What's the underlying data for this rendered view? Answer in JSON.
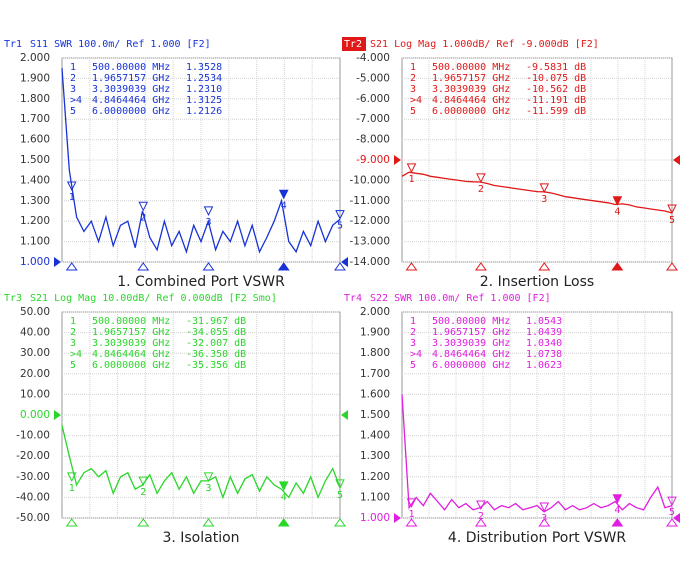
{
  "chart_data": [
    {
      "type": "line",
      "trace": "Tr1",
      "title": "S11 SWR 100.0m/ Ref 1.000 [F2]",
      "caption": "1. Combined Port VSWR",
      "color": "#1733d6",
      "active": false,
      "x": [
        0.3,
        0.45,
        0.6,
        0.75,
        0.9,
        1.05,
        1.2,
        1.35,
        1.5,
        1.65,
        1.8,
        1.95,
        2.1,
        2.25,
        2.4,
        2.55,
        2.7,
        2.85,
        3.0,
        3.15,
        3.3,
        3.45,
        3.6,
        3.75,
        3.9,
        4.05,
        4.2,
        4.35,
        4.5,
        4.65,
        4.8,
        4.95,
        5.1,
        5.25,
        5.4,
        5.55,
        5.7,
        5.85,
        6.0
      ],
      "values": [
        1.95,
        1.45,
        1.22,
        1.15,
        1.2,
        1.1,
        1.22,
        1.08,
        1.18,
        1.2,
        1.07,
        1.25,
        1.12,
        1.06,
        1.2,
        1.08,
        1.15,
        1.05,
        1.18,
        1.1,
        1.2,
        1.06,
        1.15,
        1.1,
        1.2,
        1.08,
        1.18,
        1.05,
        1.12,
        1.2,
        1.3,
        1.1,
        1.05,
        1.15,
        1.08,
        1.2,
        1.1,
        1.18,
        1.21
      ],
      "xlim": [
        0.3,
        6.0
      ],
      "ylim": [
        1,
        2
      ],
      "yticks": [
        {
          "value": 2,
          "label": "2.000"
        },
        {
          "value": 1.9,
          "label": "1.900"
        },
        {
          "value": 1.8,
          "label": "1.800"
        },
        {
          "value": 1.7,
          "label": "1.700"
        },
        {
          "value": 1.6,
          "label": "1.600"
        },
        {
          "value": 1.5,
          "label": "1.500"
        },
        {
          "value": 1.4,
          "label": "1.400"
        },
        {
          "value": 1.3,
          "label": "1.300"
        },
        {
          "value": 1.2,
          "label": "1.200"
        },
        {
          "value": 1.1,
          "label": "1.100"
        },
        {
          "value": 1,
          "label": "1.000"
        }
      ],
      "ref": 1,
      "markers": {
        "names": [
          "1",
          "2",
          "3",
          ">4",
          "5"
        ],
        "trace_labels": [
          "1",
          "2",
          "3",
          "4",
          "5"
        ],
        "stimulus": [
          "500.00000 MHz",
          "1.9657157 GHz",
          "3.3039039 GHz",
          "4.8464464 GHz",
          "6.0000000 GHz"
        ],
        "x": [
          0.5,
          1.9657157,
          3.3039039,
          4.8464464,
          6.0
        ],
        "values": [
          1.3528,
          1.2534,
          1.231,
          1.3125,
          1.2126
        ],
        "value_labels": [
          "1.3528",
          "1.2534",
          "1.2310",
          "1.3125",
          "1.2126"
        ]
      },
      "active_marker": 3
    },
    {
      "type": "line",
      "trace": "Tr2",
      "title": "S21 Log Mag 1.000dB/ Ref -9.000dB [F2]",
      "caption": "2. Insertion Loss",
      "color": "#e01818",
      "active": true,
      "x": [
        0.3,
        0.45,
        0.6,
        0.75,
        0.9,
        1.05,
        1.2,
        1.35,
        1.5,
        1.65,
        1.8,
        1.95,
        2.1,
        2.25,
        2.4,
        2.55,
        2.7,
        2.85,
        3.0,
        3.15,
        3.3,
        3.45,
        3.6,
        3.75,
        3.9,
        4.05,
        4.2,
        4.35,
        4.5,
        4.65,
        4.8,
        4.95,
        5.1,
        5.25,
        5.4,
        5.55,
        5.7,
        5.85,
        6.0
      ],
      "values": [
        -9.8,
        -9.6,
        -9.65,
        -9.7,
        -9.8,
        -9.85,
        -9.9,
        -9.95,
        -10.0,
        -10.05,
        -10.07,
        -10.08,
        -10.15,
        -10.25,
        -10.3,
        -10.35,
        -10.4,
        -10.45,
        -10.5,
        -10.55,
        -10.56,
        -10.62,
        -10.7,
        -10.8,
        -10.85,
        -10.9,
        -10.95,
        -11.0,
        -11.05,
        -11.1,
        -11.18,
        -11.15,
        -11.2,
        -11.3,
        -11.35,
        -11.4,
        -11.45,
        -11.5,
        -11.6
      ],
      "xlim": [
        0.3,
        6.0
      ],
      "ylim": [
        -14,
        -4
      ],
      "yticks": [
        {
          "value": -4,
          "label": "-4.000"
        },
        {
          "value": -5,
          "label": "-5.000"
        },
        {
          "value": -6,
          "label": "-6.000"
        },
        {
          "value": -7,
          "label": "-7.000"
        },
        {
          "value": -8,
          "label": "-8.000"
        },
        {
          "value": -9,
          "label": "-9.000"
        },
        {
          "value": -10,
          "label": "-10.000"
        },
        {
          "value": -11,
          "label": "-11.000"
        },
        {
          "value": -12,
          "label": "-12.000"
        },
        {
          "value": -13,
          "label": "-13.000"
        },
        {
          "value": -14,
          "label": "-14.000"
        }
      ],
      "ref": -9,
      "markers": {
        "names": [
          "1",
          "2",
          "3",
          ">4",
          "5"
        ],
        "trace_labels": [
          "1",
          "2",
          "3",
          "4",
          "5"
        ],
        "stimulus": [
          "500.00000 MHz",
          "1.9657157 GHz",
          "3.3039039 GHz",
          "4.8464464 GHz",
          "6.0000000 GHz"
        ],
        "x": [
          0.5,
          1.9657157,
          3.3039039,
          4.8464464,
          6.0
        ],
        "values": [
          -9.5831,
          -10.075,
          -10.562,
          -11.191,
          -11.599
        ],
        "value_labels": [
          "-9.5831 dB",
          "-10.075 dB",
          "-10.562 dB",
          "-11.191 dB",
          "-11.599 dB"
        ]
      },
      "active_marker": 3
    },
    {
      "type": "line",
      "trace": "Tr3",
      "title": "S21 Log Mag 10.00dB/ Ref 0.000dB [F2 Smo]",
      "caption": "3. Isolation",
      "color": "#2bd62b",
      "active": false,
      "x": [
        0.3,
        0.45,
        0.6,
        0.75,
        0.9,
        1.05,
        1.2,
        1.35,
        1.5,
        1.65,
        1.8,
        1.95,
        2.1,
        2.25,
        2.4,
        2.55,
        2.7,
        2.85,
        3.0,
        3.15,
        3.3,
        3.45,
        3.6,
        3.75,
        3.9,
        4.05,
        4.2,
        4.35,
        4.5,
        4.65,
        4.8,
        4.95,
        5.1,
        5.25,
        5.4,
        5.55,
        5.7,
        5.85,
        6.0
      ],
      "values": [
        -5,
        -20,
        -34,
        -28,
        -26,
        -30,
        -27,
        -38,
        -30,
        -28,
        -36,
        -34,
        -29,
        -38,
        -32,
        -28,
        -36,
        -30,
        -38,
        -32,
        -32,
        -30,
        -40,
        -30,
        -38,
        -31,
        -29,
        -37,
        -30,
        -34,
        -36,
        -40,
        -33,
        -38,
        -30,
        -40,
        -32,
        -26,
        -35
      ],
      "xlim": [
        0.3,
        6.0
      ],
      "ylim": [
        -50,
        50
      ],
      "yticks": [
        {
          "value": 50,
          "label": "50.00"
        },
        {
          "value": 40,
          "label": "40.00"
        },
        {
          "value": 30,
          "label": "30.00"
        },
        {
          "value": 20,
          "label": "20.00"
        },
        {
          "value": 10,
          "label": "10.00"
        },
        {
          "value": 0,
          "label": "0.000"
        },
        {
          "value": -10,
          "label": "-10.00"
        },
        {
          "value": -20,
          "label": "-20.00"
        },
        {
          "value": -30,
          "label": "-30.00"
        },
        {
          "value": -40,
          "label": "-40.00"
        },
        {
          "value": -50,
          "label": "-50.00"
        }
      ],
      "ref": 0,
      "markers": {
        "names": [
          "1",
          "2",
          "3",
          ">4",
          "5"
        ],
        "trace_labels": [
          "1",
          "2",
          "3",
          "4",
          "5"
        ],
        "stimulus": [
          "500.00000 MHz",
          "1.9657157 GHz",
          "3.3039039 GHz",
          "4.8464464 GHz",
          "6.0000000 GHz"
        ],
        "x": [
          0.5,
          1.9657157,
          3.3039039,
          4.8464464,
          6.0
        ],
        "values": [
          -31.967,
          -34.055,
          -32.007,
          -36.35,
          -35.356
        ],
        "value_labels": [
          "-31.967 dB",
          "-34.055 dB",
          "-32.007 dB",
          "-36.350 dB",
          "-35.356 dB"
        ]
      },
      "active_marker": 3
    },
    {
      "type": "line",
      "trace": "Tr4",
      "title": "S22 SWR 100.0m/ Ref 1.000 [F2]",
      "caption": "4. Distribution  Port VSWR",
      "color": "#e01ee0",
      "active": false,
      "x": [
        0.3,
        0.45,
        0.6,
        0.75,
        0.9,
        1.05,
        1.2,
        1.35,
        1.5,
        1.65,
        1.8,
        1.95,
        2.1,
        2.25,
        2.4,
        2.55,
        2.7,
        2.85,
        3.0,
        3.15,
        3.3,
        3.45,
        3.6,
        3.75,
        3.9,
        4.05,
        4.2,
        4.35,
        4.5,
        4.65,
        4.8,
        4.95,
        5.1,
        5.25,
        5.4,
        5.55,
        5.7,
        5.85,
        6.0
      ],
      "values": [
        1.6,
        1.05,
        1.1,
        1.06,
        1.12,
        1.08,
        1.04,
        1.09,
        1.05,
        1.07,
        1.04,
        1.05,
        1.08,
        1.04,
        1.06,
        1.05,
        1.07,
        1.04,
        1.05,
        1.06,
        1.03,
        1.05,
        1.08,
        1.04,
        1.06,
        1.04,
        1.05,
        1.07,
        1.05,
        1.06,
        1.08,
        1.04,
        1.07,
        1.05,
        1.04,
        1.1,
        1.15,
        1.05,
        1.06
      ],
      "xlim": [
        0.3,
        6.0
      ],
      "ylim": [
        1,
        2
      ],
      "yticks": [
        {
          "value": 2,
          "label": "2.000"
        },
        {
          "value": 1.9,
          "label": "1.900"
        },
        {
          "value": 1.8,
          "label": "1.800"
        },
        {
          "value": 1.7,
          "label": "1.700"
        },
        {
          "value": 1.6,
          "label": "1.600"
        },
        {
          "value": 1.5,
          "label": "1.500"
        },
        {
          "value": 1.4,
          "label": "1.400"
        },
        {
          "value": 1.3,
          "label": "1.300"
        },
        {
          "value": 1.2,
          "label": "1.200"
        },
        {
          "value": 1.1,
          "label": "1.100"
        },
        {
          "value": 1,
          "label": "1.000"
        }
      ],
      "ref": 1,
      "markers": {
        "names": [
          "1",
          "2",
          "3",
          ">4",
          "5"
        ],
        "trace_labels": [
          "1",
          "2",
          "3",
          "4",
          "5"
        ],
        "stimulus": [
          "500.00000 MHz",
          "1.9657157 GHz",
          "3.3039039 GHz",
          "4.8464464 GHz",
          "6.0000000 GHz"
        ],
        "x": [
          0.5,
          1.9657157,
          3.3039039,
          4.8464464,
          6.0
        ],
        "values": [
          1.0543,
          1.0439,
          1.034,
          1.0738,
          1.0623
        ],
        "value_labels": [
          "1.0543",
          "1.0439",
          "1.0340",
          "1.0738",
          "1.0623"
        ]
      },
      "active_marker": 3
    }
  ]
}
